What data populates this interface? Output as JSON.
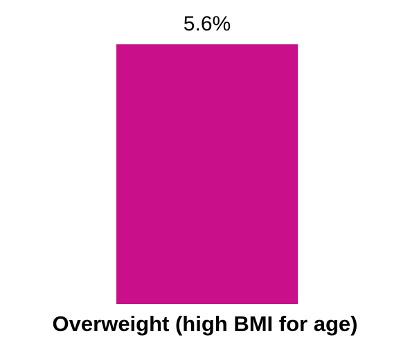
{
  "chart_data": {
    "type": "bar",
    "categories": [
      "Overweight (high BMI for age)"
    ],
    "values": [
      5.6
    ],
    "data_labels": [
      "5.6%"
    ],
    "ylim": [
      0,
      5.6
    ],
    "grid": false,
    "colors": {
      "bar": "#C90F8A"
    }
  }
}
